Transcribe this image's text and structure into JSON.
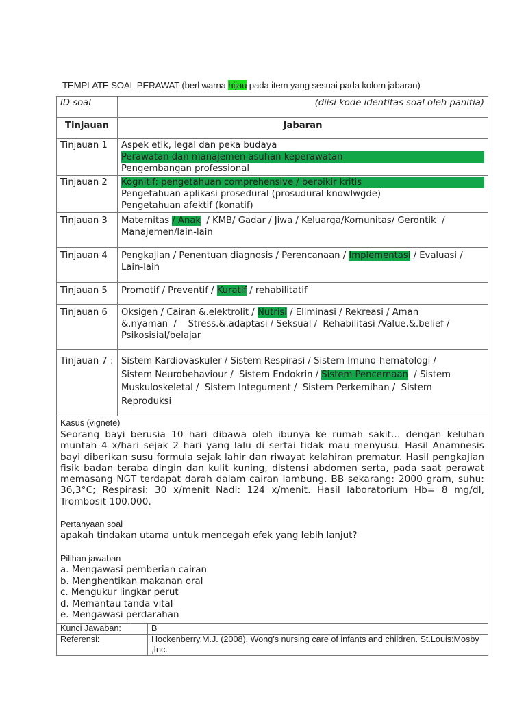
{
  "header": {
    "title_before": "TEMPLATE SOAL PERAWAT (berl  warna ",
    "title_highlight": "hijau",
    "title_after": " pada item yang sesuai pada  kolom  jabaran)",
    "highlight_color": "#1fe01f",
    "selected_color": "#12a84a"
  },
  "id_row": {
    "label": "ID   soal",
    "value": "(diisi kode identitas soal oleh panitia)"
  },
  "columns": {
    "tinjauan": "Tinjauan",
    "jabaran": "Jabaran"
  },
  "rows": [
    {
      "label": "Tinjauan 1",
      "lines": [
        [
          {
            "t": "Aspek etik, legal dan peka budaya"
          }
        ],
        [
          {
            "t": "Perawatan dan manajemen asuhan keperawatan",
            "full": true
          }
        ],
        [
          {
            "t": "Pengembangan professional"
          }
        ]
      ]
    },
    {
      "label": "Tinjauan 2",
      "lines": [
        [
          {
            "t": "Kognitif: pengetahuan comprehensive / berpikir kritis",
            "full": true
          }
        ],
        [
          {
            "t": "Pengetahuan aplikasi prosedural (prosudural knowlwgde)"
          }
        ],
        [
          {
            "t": "Pengetahuan afektif (konatif)"
          }
        ]
      ]
    },
    {
      "label": "Tinjauan 3",
      "lines": [
        [
          {
            "t": "Maternitas "
          },
          {
            "t": "/ Anak",
            "hl": true
          },
          {
            "t": "  / KMB/ Gadar / Jiwa / Keluarga/Komunitas/ Gerontik  /"
          }
        ],
        [
          {
            "t": "Manajemen/lain-lain"
          }
        ]
      ]
    },
    {
      "label": "Tinjauan 4",
      "lines": [
        [
          {
            "t": "Pengkajian / Penentuan diagnosis / Perencanaan / "
          },
          {
            "t": "Implementasi",
            "hl": true
          },
          {
            "t": " / Evaluasi /"
          }
        ],
        [
          {
            "t": "Lain-lain"
          }
        ]
      ]
    },
    {
      "label": "Tinjauan 5",
      "lines": [
        [
          {
            "t": "Promotif / Preventif / "
          },
          {
            "t": "Kuratif",
            "hl": true
          },
          {
            "t": " / rehabilitatif"
          }
        ]
      ]
    },
    {
      "label": "Tinjauan 6",
      "lines": [
        [
          {
            "t": "Oksigen / Cairan &.elektrolit / "
          },
          {
            "t": "Nutrisi",
            "hl": true
          },
          {
            "t": " / Eliminasi / Rekreasi / Aman"
          }
        ],
        [
          {
            "t": "&.nyaman  /    Stress.&.adaptasi / Seksual /  Rehabilitasi /Value.&.belief /"
          }
        ],
        [
          {
            "t": "Psikosisial/belajar"
          }
        ]
      ]
    },
    {
      "label": "Tinjauan 7 :",
      "lines": [
        [
          {
            "t": "Sistem Kardiovaskuler / Sistem Respirasi / Sistem Imuno-hematologi /"
          }
        ],
        [
          {
            "t": "Sistem Neurobehaviour /  Sistem Endokrin / "
          },
          {
            "t": "Sistem Pencernaan",
            "hl": true
          },
          {
            "t": "  / Sistem"
          }
        ],
        [
          {
            "t": "Muskuloskeletal /  Sistem Integument /  Sistem Perkemihan /  Sistem"
          }
        ],
        [
          {
            "t": "Reproduksi"
          }
        ]
      ]
    }
  ],
  "case": {
    "label": "Kasus (vignete)",
    "text": "Seorang bayi berusia  10 hari dibawa oleh ibunya ke rumah sakit... dengan keluhan muntah 4 x/hari sejak 2 hari yang lalu di sertai tidak mau menyusu. Hasil Anamnesis bayi diberikan susu formula sejak lahir dan riwayat kelahiran prematur.  Hasil pengkajian fisik badan teraba dingin dan kulit kuning, distensi abdomen serta, pada saat perawat memasang NGT  terdapat darah dalam cairan lambung. BB sekarang: 2000 gram, suhu: 36,3°C; Respirasi: 30 x/menit Nadi: 124 x/menit. Hasil laboratorium Hb= 8 mg/dl, Trombosit 100.000.",
    "question_label": "Pertanyaan soal",
    "question": "apakah tindakan utama untuk mencegah efek yang lebih lanjut?",
    "options_label": "Pilihan jawaban",
    "options": [
      "a. Mengawasi pemberian cairan",
      "b. Menghentikan makanan oral",
      "c. Mengukur lingkar perut",
      "d. Memantau tanda vital",
      "e. Mengawasi perdarahan"
    ]
  },
  "answer": {
    "label": "Kunci Jawaban:",
    "value": "B"
  },
  "reference": {
    "label": "Referensi:",
    "value": "Hockenberry,M.J. (2008). Wong's nursing care of infants and children. St.Louis:Mosby ,Inc."
  }
}
